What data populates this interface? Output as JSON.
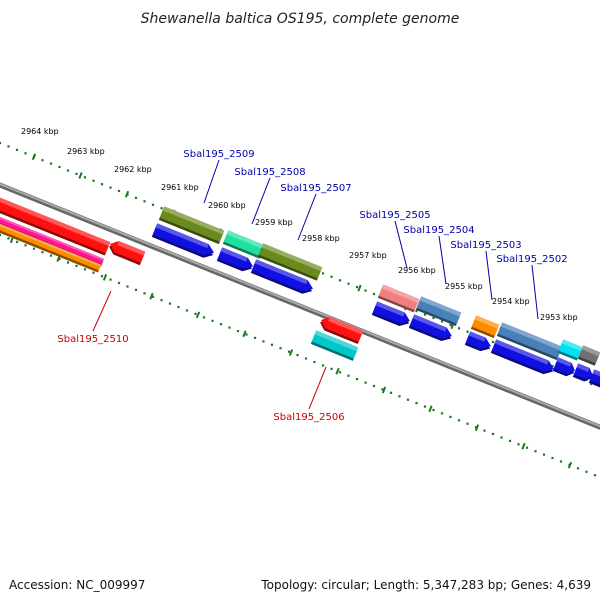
{
  "title": "Shewanella baltica OS195, complete genome",
  "footer": {
    "accession": "Accession: NC_009997",
    "summary": "Topology: circular; Length: 5,347,283 bp; Genes: 4,639"
  },
  "colors": {
    "backbone": "#808080",
    "tick": "#1a7a1a",
    "forward_label": "#0000aa",
    "reverse_label": "#cc0000",
    "blue_cds": "#1010e0"
  },
  "scale_labels": [
    "2964 kbp",
    "2963 kbp",
    "2962 kbp",
    "2961 kbp",
    "2960 kbp",
    "2959 kbp",
    "2958 kbp",
    "2957 kbp",
    "2956 kbp",
    "2955 kbp",
    "2954 kbp",
    "2953 kbp"
  ],
  "gene_labels": [
    {
      "text": "Sbal195_2509",
      "strand": "forward"
    },
    {
      "text": "Sbal195_2508",
      "strand": "forward"
    },
    {
      "text": "Sbal195_2507",
      "strand": "forward"
    },
    {
      "text": "Sbal195_2505",
      "strand": "forward"
    },
    {
      "text": "Sbal195_2504",
      "strand": "forward"
    },
    {
      "text": "Sbal195_2503",
      "strand": "forward"
    },
    {
      "text": "Sbal195_2502",
      "strand": "forward"
    },
    {
      "text": "Sbal195_2510",
      "strand": "reverse"
    },
    {
      "text": "Sbal195_2506",
      "strand": "reverse"
    }
  ]
}
